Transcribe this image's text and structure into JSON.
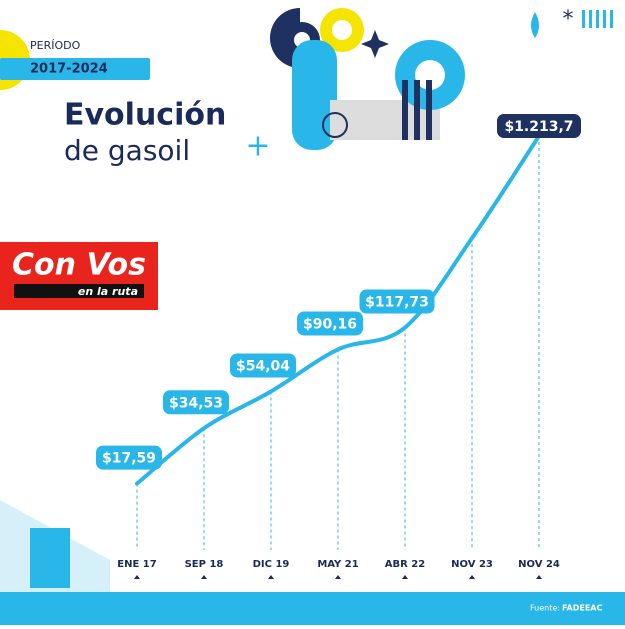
{
  "header": {
    "period_label": "PERÍODO",
    "period": "2017-2024",
    "title_line1": "Evolución",
    "title_line2": "de gasoil"
  },
  "logo": {
    "name": "Con Vos",
    "tagline": "en la ruta"
  },
  "footer": {
    "source_label": "Fuente:",
    "source": "FADEEAC"
  },
  "chart_data": {
    "type": "line",
    "categories": [
      "ENE 17",
      "SEP 18",
      "DIC 19",
      "MAY 21",
      "ABR 22",
      "NOV 23",
      "NOV 24"
    ],
    "series": [
      {
        "name": "Gasoil",
        "color": "#29b6e8",
        "values": [
          17.59,
          34.53,
          54.04,
          90.16,
          117.73,
          350,
          1213.7
        ],
        "value_labels": [
          "$17,59",
          "$34,53",
          "$54,04",
          "$90,16",
          "$117,73",
          null,
          "$1.213,7"
        ]
      }
    ],
    "log_scale": true,
    "ylim": [
      10,
      2000
    ]
  }
}
